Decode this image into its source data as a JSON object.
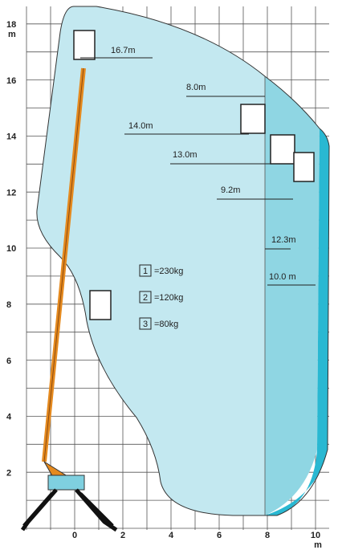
{
  "y_axis": {
    "ticks": [
      "18",
      "16",
      "14",
      "12",
      "10",
      "8",
      "6",
      "4",
      "2"
    ],
    "unit": "m"
  },
  "x_axis": {
    "ticks": [
      "0",
      "2",
      "4",
      "6",
      "8",
      "10"
    ],
    "unit": "m"
  },
  "dimensions": [
    "16.7m",
    "8.0m",
    "14.0m",
    "13.0m",
    "9.2m",
    "12.3m",
    "10.0 m"
  ],
  "loads": [
    {
      "number": "1",
      "label": "=230kg"
    },
    {
      "number": "2",
      "label": "=120kg"
    },
    {
      "number": "3",
      "label": "=80kg"
    }
  ]
}
